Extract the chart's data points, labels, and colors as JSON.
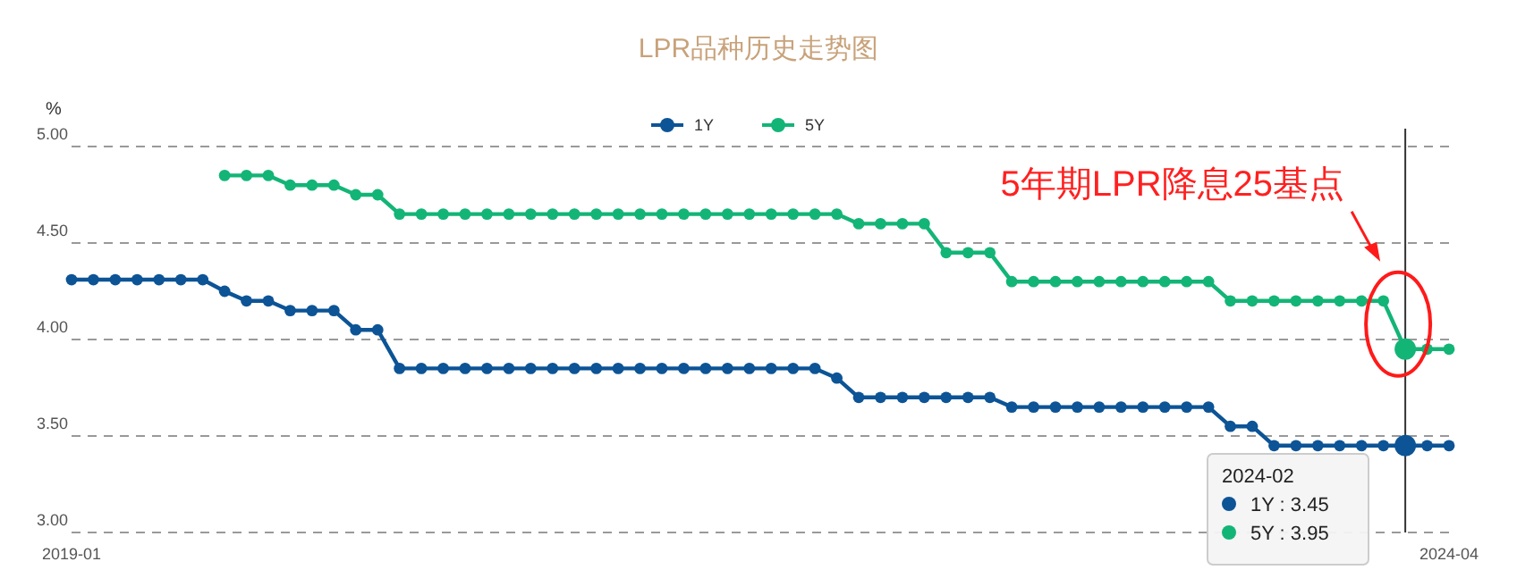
{
  "chart_data": {
    "type": "line",
    "title": "LPR品种历史走势图",
    "ylabel": "%",
    "x": [
      "2019-01",
      "2019-02",
      "2019-03",
      "2019-04",
      "2019-05",
      "2019-06",
      "2019-07",
      "2019-08",
      "2019-09",
      "2019-10",
      "2019-11",
      "2019-12",
      "2020-01",
      "2020-02",
      "2020-03",
      "2020-04",
      "2020-05",
      "2020-06",
      "2020-07",
      "2020-08",
      "2020-09",
      "2020-10",
      "2020-11",
      "2020-12",
      "2021-01",
      "2021-02",
      "2021-03",
      "2021-04",
      "2021-05",
      "2021-06",
      "2021-07",
      "2021-08",
      "2021-09",
      "2021-10",
      "2021-11",
      "2021-12",
      "2022-01",
      "2022-02",
      "2022-03",
      "2022-04",
      "2022-05",
      "2022-06",
      "2022-07",
      "2022-08",
      "2022-09",
      "2022-10",
      "2022-11",
      "2022-12",
      "2023-01",
      "2023-02",
      "2023-03",
      "2023-04",
      "2023-05",
      "2023-06",
      "2023-07",
      "2023-08",
      "2023-09",
      "2023-10",
      "2023-11",
      "2023-12",
      "2024-01",
      "2024-02",
      "2024-03",
      "2024-04"
    ],
    "series": [
      {
        "name": "1Y",
        "color": "#0c5496",
        "values": [
          4.31,
          4.31,
          4.31,
          4.31,
          4.31,
          4.31,
          4.31,
          4.25,
          4.2,
          4.2,
          4.15,
          4.15,
          4.15,
          4.05,
          4.05,
          3.85,
          3.85,
          3.85,
          3.85,
          3.85,
          3.85,
          3.85,
          3.85,
          3.85,
          3.85,
          3.85,
          3.85,
          3.85,
          3.85,
          3.85,
          3.85,
          3.85,
          3.85,
          3.85,
          3.85,
          3.8,
          3.7,
          3.7,
          3.7,
          3.7,
          3.7,
          3.7,
          3.7,
          3.65,
          3.65,
          3.65,
          3.65,
          3.65,
          3.65,
          3.65,
          3.65,
          3.65,
          3.65,
          3.55,
          3.55,
          3.45,
          3.45,
          3.45,
          3.45,
          3.45,
          3.45,
          3.45,
          3.45,
          3.45
        ]
      },
      {
        "name": "5Y",
        "color": "#13b577",
        "values": [
          null,
          null,
          null,
          null,
          null,
          null,
          null,
          4.85,
          4.85,
          4.85,
          4.8,
          4.8,
          4.8,
          4.75,
          4.75,
          4.65,
          4.65,
          4.65,
          4.65,
          4.65,
          4.65,
          4.65,
          4.65,
          4.65,
          4.65,
          4.65,
          4.65,
          4.65,
          4.65,
          4.65,
          4.65,
          4.65,
          4.65,
          4.65,
          4.65,
          4.65,
          4.6,
          4.6,
          4.6,
          4.6,
          4.45,
          4.45,
          4.45,
          4.3,
          4.3,
          4.3,
          4.3,
          4.3,
          4.3,
          4.3,
          4.3,
          4.3,
          4.3,
          4.2,
          4.2,
          4.2,
          4.2,
          4.2,
          4.2,
          4.2,
          4.2,
          3.95,
          3.95,
          3.95
        ]
      }
    ],
    "xlim": [
      "2019-01",
      "2024-04"
    ],
    "xticks": [
      "2019-01",
      "2024-04"
    ],
    "ylim": [
      3.0,
      5.0
    ],
    "yticks": [
      {
        "value": 3.0,
        "label": "3.00"
      },
      {
        "value": 3.5,
        "label": "3.50"
      },
      {
        "value": 4.0,
        "label": "4.00"
      },
      {
        "value": 4.5,
        "label": "4.50"
      },
      {
        "value": 5.0,
        "label": "5.00"
      }
    ],
    "ref_lines": [
      {
        "axis": "x",
        "value": "2024-02",
        "color": "#333333"
      }
    ],
    "annotations": [
      "5年期LPR降息25基点",
      "2024-02",
      "1Y  : 3.45",
      "5Y  : 3.95"
    ],
    "grid": "y",
    "legend": "top",
    "marker": "circle",
    "line_style": "solid"
  }
}
